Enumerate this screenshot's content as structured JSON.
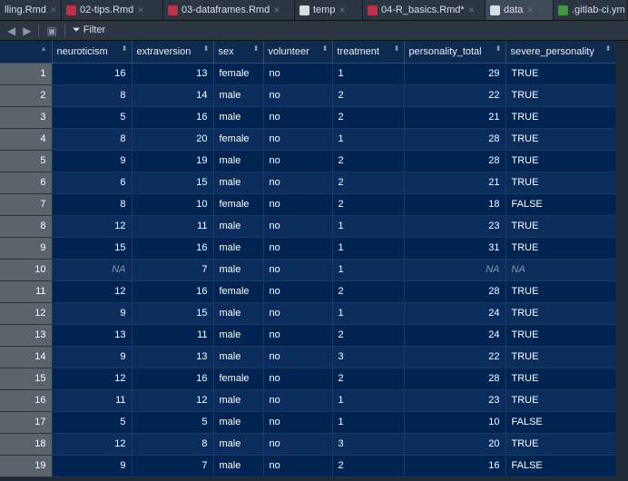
{
  "tabs": [
    {
      "label": "lling.Rmd",
      "icon": "none"
    },
    {
      "label": "02-tips.Rmd",
      "icon": "rmd"
    },
    {
      "label": "03-dataframes.Rmd",
      "icon": "rmd"
    },
    {
      "label": "temp",
      "icon": "grid"
    },
    {
      "label": "04-R_basics.Rmd*",
      "icon": "rmd"
    },
    {
      "label": "data",
      "icon": "grid",
      "active": true
    },
    {
      "label": ".gitlab-ci.ym",
      "icon": "yml"
    }
  ],
  "toolbar": {
    "filter_label": "Filter"
  },
  "columns": [
    "neuroticism",
    "extraversion",
    "sex",
    "volunteer",
    "treatment",
    "personality_total",
    "severe_personality"
  ],
  "rows": [
    [
      "1",
      "16",
      "13",
      "female",
      "no",
      "1",
      "29",
      "TRUE"
    ],
    [
      "2",
      "8",
      "14",
      "male",
      "no",
      "2",
      "22",
      "TRUE"
    ],
    [
      "3",
      "5",
      "16",
      "male",
      "no",
      "2",
      "21",
      "TRUE"
    ],
    [
      "4",
      "8",
      "20",
      "female",
      "no",
      "1",
      "28",
      "TRUE"
    ],
    [
      "5",
      "9",
      "19",
      "male",
      "no",
      "2",
      "28",
      "TRUE"
    ],
    [
      "6",
      "6",
      "15",
      "male",
      "no",
      "2",
      "21",
      "TRUE"
    ],
    [
      "7",
      "8",
      "10",
      "female",
      "no",
      "2",
      "18",
      "FALSE"
    ],
    [
      "8",
      "12",
      "11",
      "male",
      "no",
      "1",
      "23",
      "TRUE"
    ],
    [
      "9",
      "15",
      "16",
      "male",
      "no",
      "1",
      "31",
      "TRUE"
    ],
    [
      "10",
      "NA",
      "7",
      "male",
      "no",
      "1",
      "NA",
      "NA"
    ],
    [
      "11",
      "12",
      "16",
      "female",
      "no",
      "2",
      "28",
      "TRUE"
    ],
    [
      "12",
      "9",
      "15",
      "male",
      "no",
      "1",
      "24",
      "TRUE"
    ],
    [
      "13",
      "13",
      "11",
      "male",
      "no",
      "2",
      "24",
      "TRUE"
    ],
    [
      "14",
      "9",
      "13",
      "male",
      "no",
      "3",
      "22",
      "TRUE"
    ],
    [
      "15",
      "12",
      "16",
      "female",
      "no",
      "2",
      "28",
      "TRUE"
    ],
    [
      "16",
      "11",
      "12",
      "male",
      "no",
      "1",
      "23",
      "TRUE"
    ],
    [
      "17",
      "5",
      "5",
      "male",
      "no",
      "1",
      "10",
      "FALSE"
    ],
    [
      "18",
      "12",
      "8",
      "male",
      "no",
      "3",
      "20",
      "TRUE"
    ],
    [
      "19",
      "9",
      "7",
      "male",
      "no",
      "2",
      "16",
      "FALSE"
    ]
  ]
}
